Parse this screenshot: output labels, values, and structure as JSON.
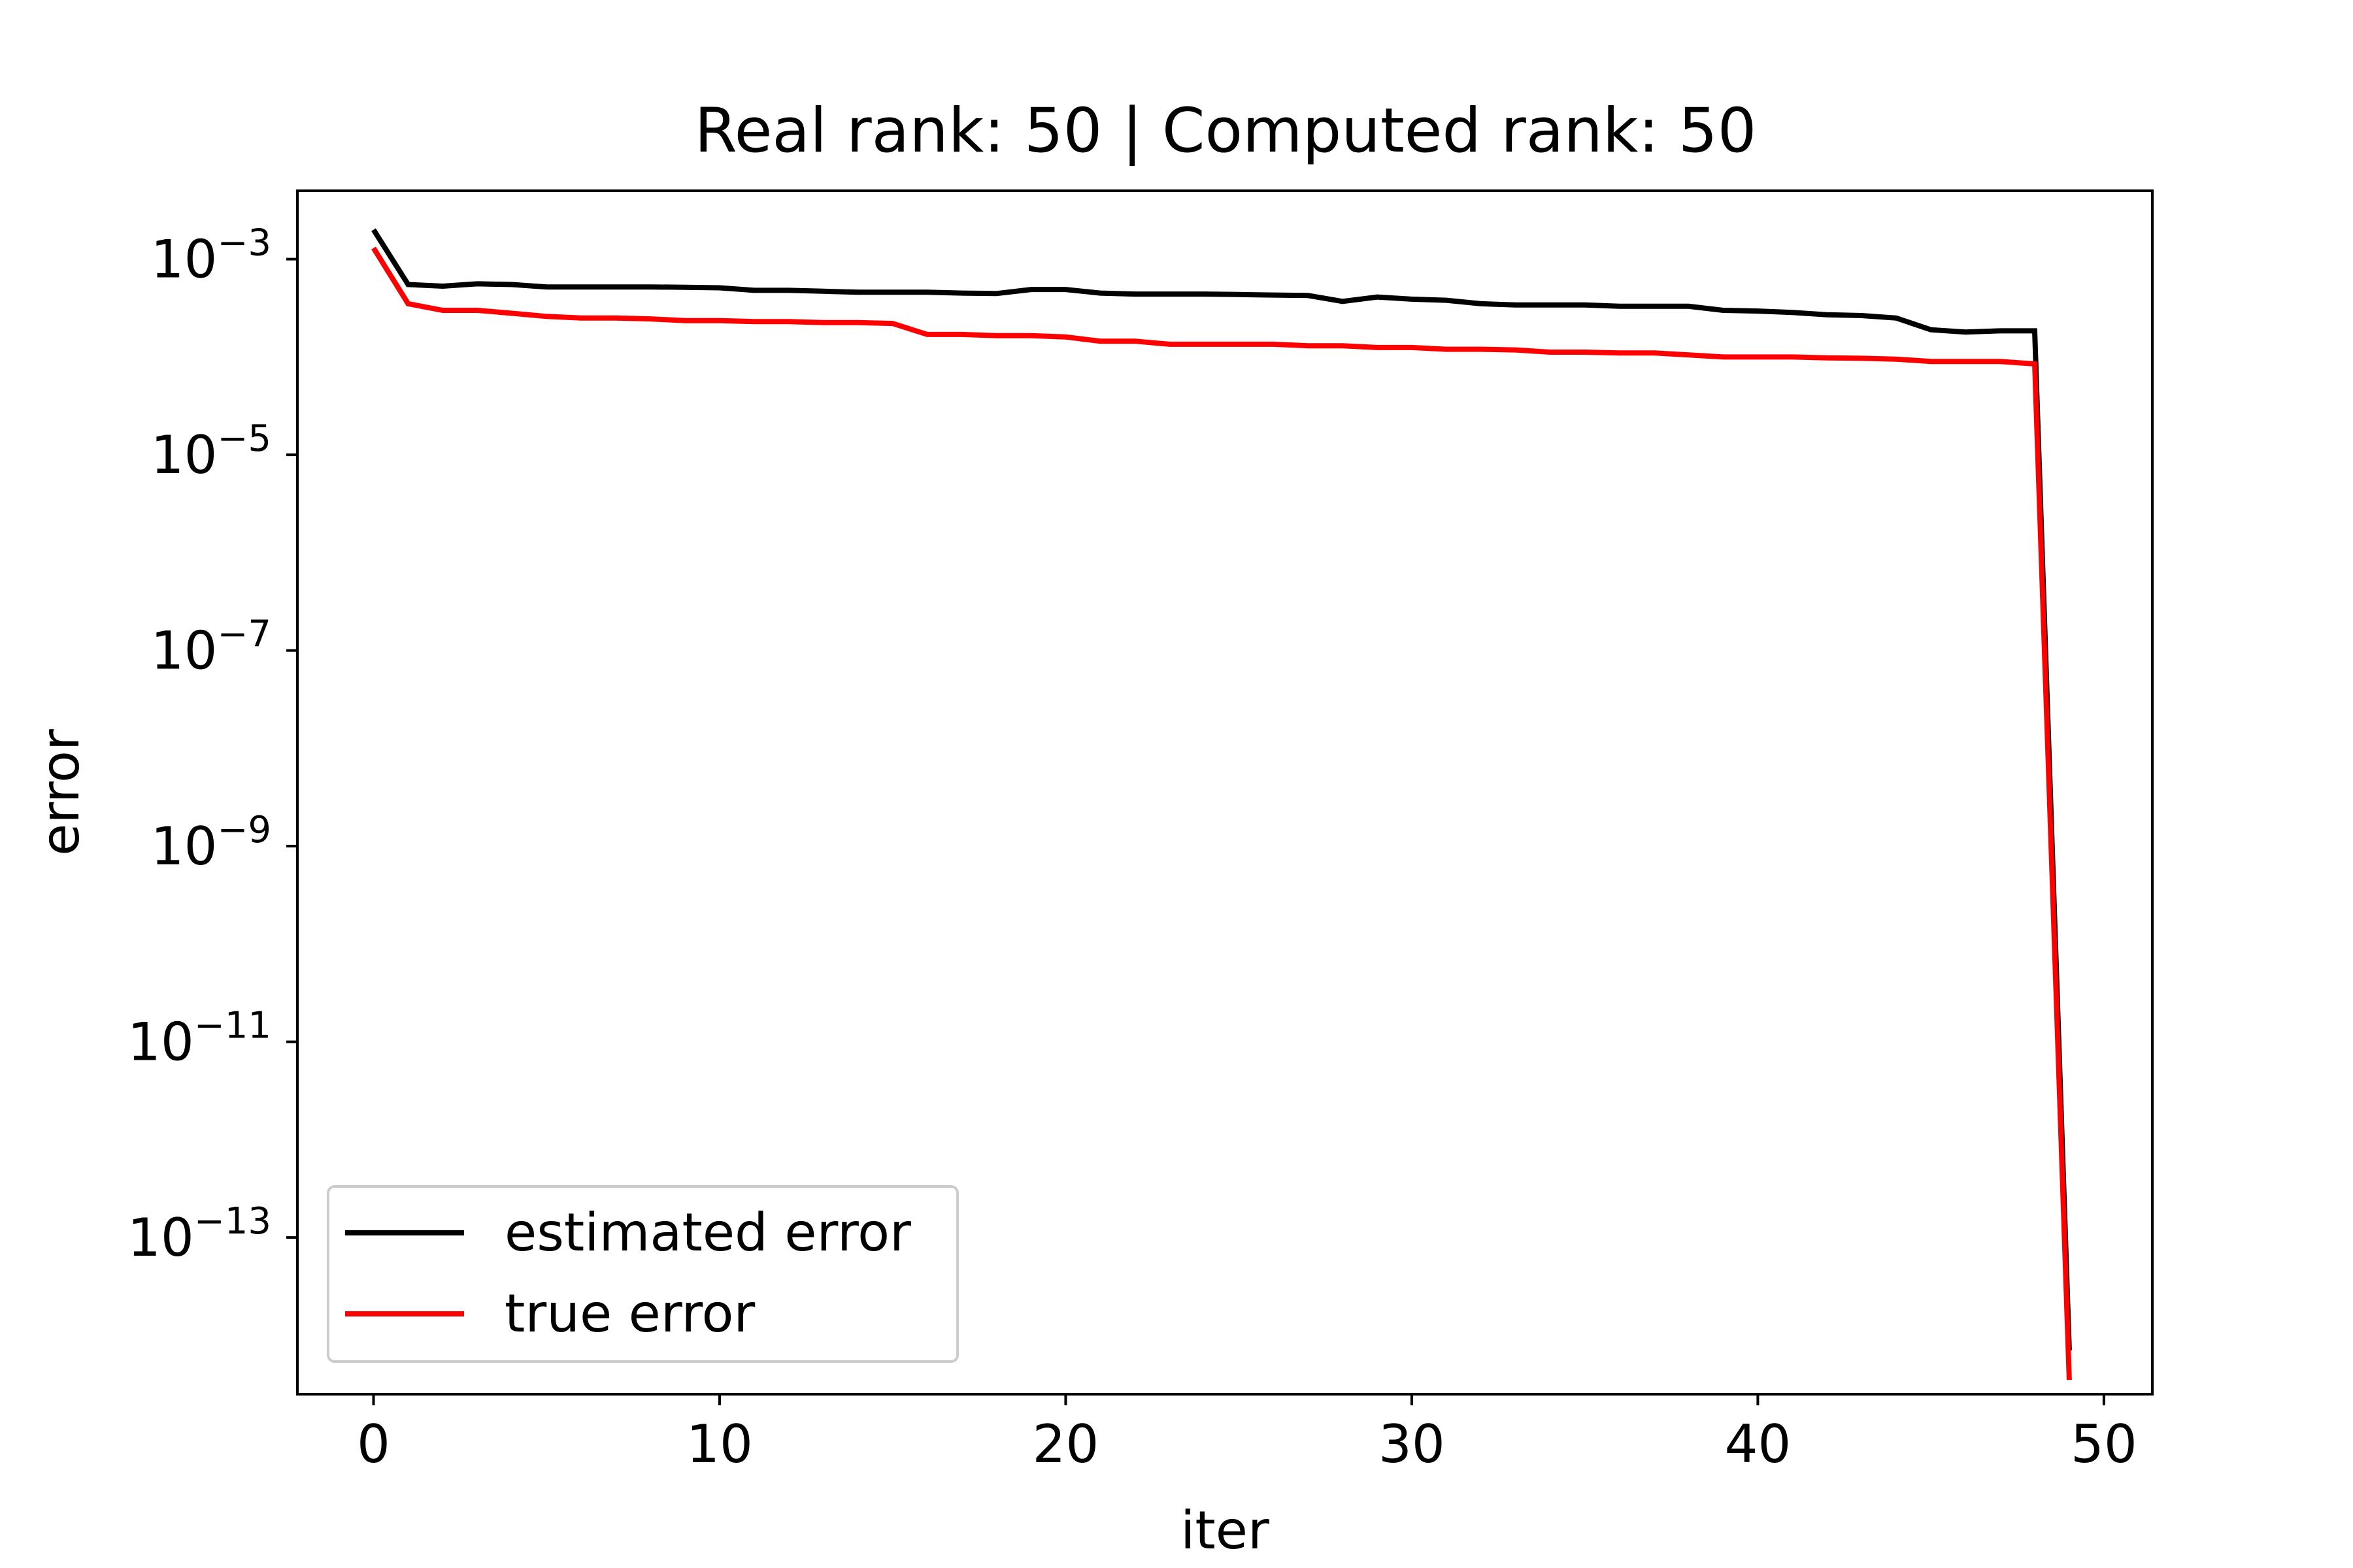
{
  "chart_data": {
    "type": "line",
    "title": "Real rank: 50 | Computed rank: 50",
    "xlabel": "iter",
    "ylabel": "error",
    "xlim": [
      -2.2,
      51.4
    ],
    "ylim": [
      2.5e-15,
      0.005
    ],
    "yscale": "log",
    "grid": false,
    "legend_position": "lower-left",
    "x_ticks": [
      0,
      10,
      20,
      30,
      40,
      50
    ],
    "x_tick_labels": [
      "0",
      "10",
      "20",
      "30",
      "40",
      "50"
    ],
    "y_ticks": [
      {
        "base": "10",
        "exp": "−3",
        "value": 0.001
      },
      {
        "base": "10",
        "exp": "−5",
        "value": 1e-05
      },
      {
        "base": "10",
        "exp": "−7",
        "value": 1e-07
      },
      {
        "base": "10",
        "exp": "−9",
        "value": 1e-09
      },
      {
        "base": "10",
        "exp": "−11",
        "value": 1e-11
      },
      {
        "base": "10",
        "exp": "−13",
        "value": 1e-13
      }
    ],
    "x": [
      0,
      1,
      2,
      3,
      4,
      5,
      6,
      7,
      8,
      9,
      10,
      11,
      12,
      13,
      14,
      15,
      16,
      17,
      18,
      19,
      20,
      21,
      22,
      23,
      24,
      25,
      26,
      27,
      28,
      29,
      30,
      31,
      32,
      33,
      34,
      35,
      36,
      37,
      38,
      39,
      40,
      41,
      42,
      43,
      44,
      45,
      46,
      47,
      48,
      49
    ],
    "series": [
      {
        "name": "estimated error",
        "color": "#000000",
        "values": [
          0.002,
          0.00055,
          0.00053,
          0.00056,
          0.00055,
          0.00052,
          0.00052,
          0.00052,
          0.00052,
          0.000515,
          0.00051,
          0.00048,
          0.00048,
          0.00047,
          0.00046,
          0.00046,
          0.00046,
          0.00045,
          0.000445,
          0.00049,
          0.00049,
          0.00045,
          0.00044,
          0.00044,
          0.00044,
          0.000435,
          0.00043,
          0.000425,
          0.00037,
          0.00041,
          0.00039,
          0.00038,
          0.00035,
          0.00034,
          0.00034,
          0.00034,
          0.00033,
          0.00033,
          0.00033,
          0.0003,
          0.000295,
          0.000285,
          0.00027,
          0.000265,
          0.00025,
          0.00019,
          0.00018,
          0.000185,
          0.000185,
          7e-15
        ]
      },
      {
        "name": "true error",
        "color": "#ff0000",
        "values": [
          0.0013,
          0.00035,
          0.0003,
          0.0003,
          0.00028,
          0.00026,
          0.00025,
          0.00025,
          0.000245,
          0.000235,
          0.000235,
          0.00023,
          0.00023,
          0.000225,
          0.000225,
          0.00022,
          0.00017,
          0.00017,
          0.000165,
          0.000165,
          0.00016,
          0.000145,
          0.000145,
          0.000135,
          0.000135,
          0.000135,
          0.000135,
          0.00013,
          0.00013,
          0.000125,
          0.000125,
          0.00012,
          0.00012,
          0.000118,
          0.000112,
          0.000112,
          0.00011,
          0.00011,
          0.000105,
          0.0001,
          0.0001,
          0.0001,
          9.8e-05,
          9.7e-05,
          9.5e-05,
          9e-05,
          9e-05,
          9e-05,
          8.5e-05,
          3.5e-15
        ]
      }
    ]
  }
}
